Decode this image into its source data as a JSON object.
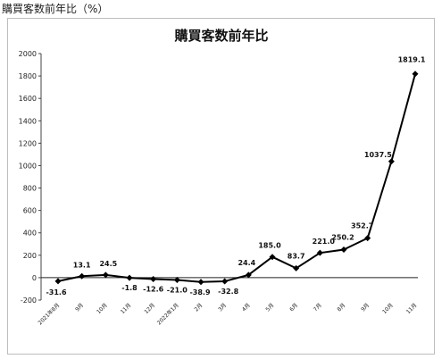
{
  "caption": "購買客数前年比（%）",
  "chart_data": {
    "type": "line",
    "title": "購買客数前年比",
    "xlabel": "",
    "ylabel": "",
    "ylim": [
      -200,
      2000
    ],
    "yticks": [
      2000,
      1800,
      1600,
      1400,
      1200,
      1000,
      800,
      600,
      400,
      200,
      0,
      -200
    ],
    "grid": false,
    "legend": "none",
    "categories": [
      "2021年8月",
      "9月",
      "10月",
      "11月",
      "12月",
      "2022年1月",
      "2月",
      "3月",
      "4月",
      "5月",
      "6月",
      "7月",
      "8月",
      "9月",
      "10月",
      "11月"
    ],
    "series": [
      {
        "values": [
          -31.6,
          13.1,
          24.5,
          -1.8,
          -12.6,
          -21.0,
          -38.9,
          -32.8,
          24.4,
          185.0,
          83.7,
          221.0,
          250.2,
          352.7,
          1037.5,
          1819.1
        ],
        "labels": [
          "-31.6",
          "13.1",
          "24.5",
          "-1.8",
          "-12.6",
          "-21.0",
          "-38.9",
          "-32.8",
          "24.4",
          "185.0",
          "83.7",
          "221.0",
          "250.2",
          "352.7",
          "1037.5",
          "1819.1"
        ],
        "color": "#000000"
      }
    ]
  }
}
